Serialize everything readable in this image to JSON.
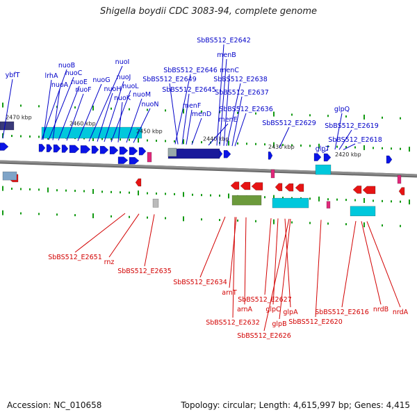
{
  "title": "Shigella boydii CDC 3083-94, complete genome",
  "footer": {
    "accession": "Accession: NC_010658",
    "summary": "Topology: circular; Length: 4,615,997 bp; Genes: 4,415"
  },
  "colors": {
    "forward_label": "#0000c8",
    "reverse_label": "#d20000",
    "forward_gene": "#0a14e6",
    "reverse_gene": "#e61414",
    "backbone": "#8c8c8c",
    "tick": "#119911",
    "operon": "#00c8dc",
    "trna": "#e0287a"
  },
  "kbp_ticks": [
    "2470 kbp",
    "2460 kbp",
    "2450 kbp",
    "2440 kbp",
    "2430 kbp",
    "2420 kbp"
  ],
  "forward_labels": [
    "ybfT",
    "nuoB",
    "lrhA",
    "nuoC",
    "nuoA",
    "nuoE",
    "nuoF",
    "nuoG",
    "nuoI",
    "nuoH",
    "nuoJ",
    "nuoL",
    "nuoK",
    "nuoM",
    "nuoN",
    "SbBS512_E2642",
    "menB",
    "SbBS512_E2646",
    "menC",
    "SbBS512_E2649",
    "SbBS512_E2638",
    "SbBS512_E2645",
    "SbBS512_E2637",
    "menF",
    "menD",
    "SbBS512_E2636",
    "menE",
    "glpQ",
    "SbBS512_E2629",
    "SbBS512_E2619",
    "glpT",
    "SbBS512_E2618"
  ],
  "reverse_labels": [
    "SbBS512_E2651",
    "rnz",
    "SbBS512_E2635",
    "SbBS512_E2634",
    "arnT",
    "SbBS512_E2627",
    "arnA",
    "glpC",
    "glpA",
    "SbBS512_E2632",
    "glpB",
    "SbBS512_E2620",
    "SbBS512_E2616",
    "nrdB",
    "nrdA",
    "SbBS512_E2626"
  ]
}
